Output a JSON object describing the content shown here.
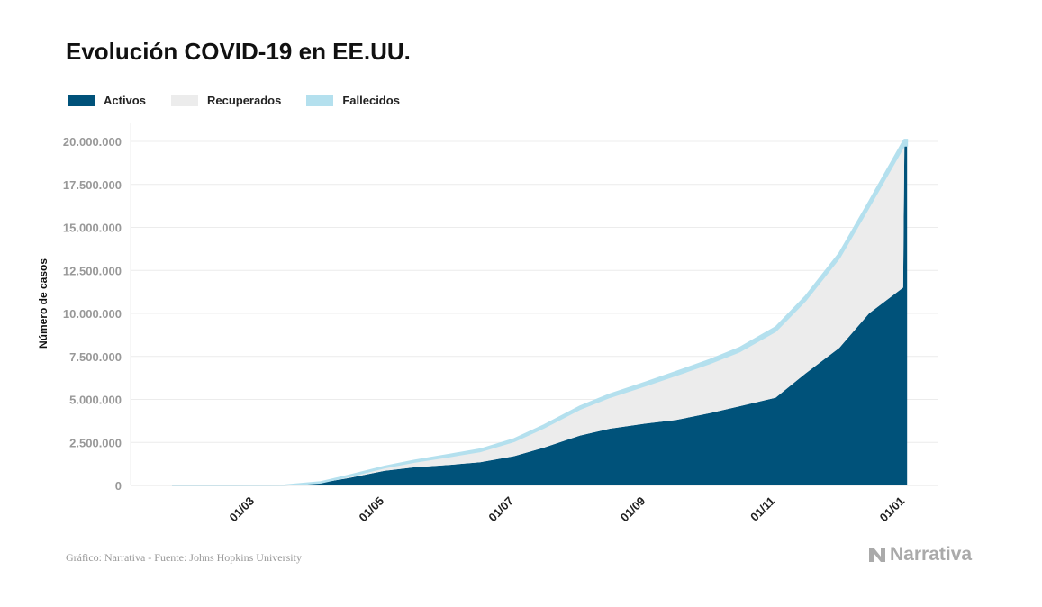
{
  "title": "Evolución COVID-19 en EE.UU.",
  "legend": [
    {
      "label": "Activos",
      "color": "#00527a"
    },
    {
      "label": "Recuperados",
      "color": "#ececec"
    },
    {
      "label": "Fallecidos",
      "color": "#b4e0ee"
    }
  ],
  "source": "Gráfico: Narrativa - Fuente: Johns Hopkins University",
  "logo": "Narrativa",
  "chart_data": {
    "type": "area",
    "stacked": true,
    "title": "Evolución COVID-19 en EE.UU.",
    "ylabel": "Número de casos",
    "xlabel": "",
    "ylim": [
      0,
      20000000
    ],
    "xlim": [
      "2020-01-01",
      "2021-01-13"
    ],
    "grid": true,
    "legend_position": "top-left",
    "yticks": [
      0,
      2500000,
      5000000,
      7500000,
      10000000,
      12500000,
      15000000,
      17500000,
      20000000
    ],
    "ytick_labels": [
      "0",
      "2.500.000",
      "5.000.000",
      "7.500.000",
      "10.000.000",
      "12.500.000",
      "15.000.000",
      "17.500.000",
      "20.000.000"
    ],
    "xticks": [
      "2020-03-01",
      "2020-05-01",
      "2020-07-01",
      "2020-09-01",
      "2020-11-01",
      "2021-01-01"
    ],
    "xtick_labels": [
      "01/03",
      "01/05",
      "01/07",
      "01/09",
      "01/11",
      "01/01"
    ],
    "x": [
      "2020-01-22",
      "2020-03-15",
      "2020-04-01",
      "2020-04-15",
      "2020-05-01",
      "2020-05-15",
      "2020-06-01",
      "2020-06-15",
      "2020-07-01",
      "2020-07-15",
      "2020-08-01",
      "2020-08-15",
      "2020-09-01",
      "2020-09-15",
      "2020-10-01",
      "2020-10-15",
      "2020-11-01",
      "2020-11-15",
      "2020-12-01",
      "2020-12-15",
      "2020-12-31",
      "2021-01-01"
    ],
    "series": [
      {
        "name": "Activos",
        "values": [
          0,
          3000,
          150000,
          450000,
          850000,
          1050000,
          1200000,
          1350000,
          1700000,
          2200000,
          2900000,
          3300000,
          3600000,
          3800000,
          4200000,
          4600000,
          5100000,
          6500000,
          8000000,
          10000000,
          11500000,
          19750000
        ]
      },
      {
        "name": "Recuperados",
        "values": [
          0,
          0,
          10000,
          100000,
          185000,
          315000,
          495000,
          634000,
          873000,
          1162000,
          1545000,
          1833000,
          2215000,
          2605000,
          2892000,
          3184000,
          3869000,
          4237000,
          5230000,
          6195000,
          8155000,
          0
        ]
      },
      {
        "name": "Fallecidos",
        "values": [
          0,
          0,
          40000,
          50000,
          65000,
          85000,
          105000,
          116000,
          127000,
          138000,
          155000,
          167000,
          185000,
          195000,
          208000,
          216000,
          231000,
          247000,
          270000,
          305000,
          345000,
          350000
        ]
      }
    ]
  }
}
